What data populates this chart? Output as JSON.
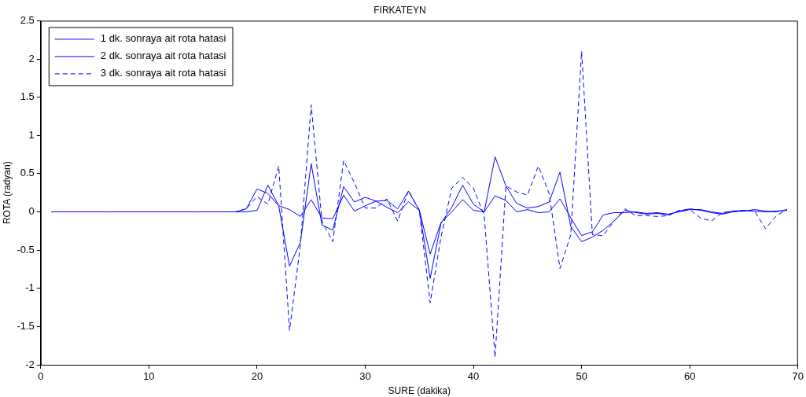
{
  "chart_data": {
    "type": "line",
    "title": "FIRKATEYN",
    "xlabel": "SURE (dakika)",
    "ylabel": "ROTA (radyan)",
    "x": [
      1,
      2,
      3,
      4,
      5,
      6,
      7,
      8,
      9,
      10,
      11,
      12,
      13,
      14,
      15,
      16,
      17,
      18,
      19,
      20,
      21,
      22,
      23,
      24,
      25,
      26,
      27,
      28,
      29,
      30,
      31,
      32,
      33,
      34,
      35,
      36,
      37,
      38,
      39,
      40,
      41,
      42,
      43,
      44,
      45,
      46,
      47,
      48,
      49,
      50,
      51,
      52,
      53,
      54,
      55,
      56,
      57,
      58,
      59,
      60,
      61,
      62,
      63,
      64,
      65,
      66,
      67,
      68,
      69
    ],
    "series": [
      {
        "name": "1 dk. sonraya ait rota hatasi",
        "color": "#0000ff",
        "line_style": "solid",
        "values": [
          0,
          0,
          0,
          0,
          0,
          0,
          0,
          0,
          0,
          0,
          0,
          0,
          0,
          0,
          0,
          0,
          0,
          0,
          0,
          0.02,
          0.35,
          0.08,
          0.03,
          -0.06,
          0.16,
          -0.08,
          -0.09,
          0.22,
          0.01,
          0.08,
          0.14,
          0.06,
          -0.01,
          0.13,
          0.02,
          -0.55,
          -0.14,
          0,
          0.16,
          0.02,
          0,
          0.21,
          0.15,
          0,
          0.03,
          -0.01,
          0,
          0.17,
          -0.08,
          -0.31,
          -0.26,
          -0.04,
          -0.01,
          -0.01,
          0,
          -0.02,
          -0.01,
          -0.03,
          0,
          0.03,
          0.03,
          0,
          -0.02,
          0.01,
          0.02,
          0.01,
          0,
          0.01,
          0.02
        ]
      },
      {
        "name": "2 dk. sonraya ait rota hatasi",
        "color": "#0000ff",
        "line_style": "solid",
        "values": [
          0,
          0,
          0,
          0,
          0,
          0,
          0,
          0,
          0,
          0,
          0,
          0,
          0,
          0,
          0,
          0,
          0,
          0,
          0.04,
          0.3,
          0.24,
          0.08,
          -0.71,
          -0.4,
          0.63,
          -0.17,
          -0.24,
          0.33,
          0.13,
          0.19,
          0.14,
          0.15,
          0.04,
          0.27,
          0.02,
          -0.87,
          -0.15,
          0.06,
          0.35,
          0.1,
          0,
          0.72,
          0.34,
          0.11,
          0.05,
          0.07,
          0.13,
          0.52,
          -0.19,
          -0.39,
          -0.33,
          -0.24,
          -0.12,
          0.02,
          -0.01,
          -0.03,
          -0.02,
          -0.04,
          0.01,
          0.04,
          0.02,
          -0.01,
          -0.03,
          0,
          0.01,
          0.03,
          0.01,
          0,
          0.03
        ]
      },
      {
        "name": "3 dk. sonraya ait rota hatasi",
        "color": "#0000ff",
        "line_style": "dashed",
        "values": [
          0,
          0,
          0,
          0,
          0,
          0,
          0,
          0,
          0,
          0,
          0,
          0,
          0,
          0,
          0,
          0,
          0,
          0,
          0.04,
          0.2,
          0.1,
          0.6,
          -1.55,
          -0.44,
          1.4,
          -0.12,
          -0.39,
          0.67,
          0.38,
          0.05,
          0.05,
          0.17,
          -0.12,
          0.28,
          0.02,
          -1.19,
          -0.33,
          0.31,
          0.45,
          0.31,
          -0.05,
          -1.9,
          0.34,
          0.26,
          0.22,
          0.6,
          0.24,
          -0.74,
          -0.3,
          2.1,
          -0.3,
          -0.31,
          -0.12,
          0.04,
          -0.05,
          -0.05,
          -0.06,
          -0.05,
          0.02,
          0.03,
          -0.08,
          -0.12,
          -0.01,
          0.01,
          0.02,
          0.01,
          -0.22,
          -0.05,
          0.03
        ]
      }
    ],
    "xlim": [
      0,
      70
    ],
    "xticks": [
      0,
      10,
      20,
      30,
      40,
      50,
      60,
      70
    ],
    "ylim": [
      -2,
      2.5
    ],
    "yticks": [
      -2,
      -1.5,
      -1,
      -0.5,
      0,
      0.5,
      1,
      1.5,
      2,
      2.5
    ],
    "grid": false,
    "legend": "top left"
  }
}
